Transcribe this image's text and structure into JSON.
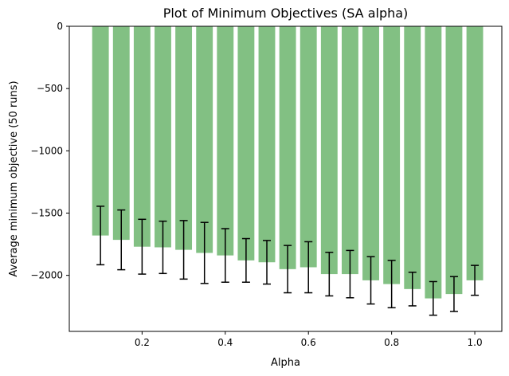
{
  "chart_data": {
    "type": "bar",
    "title": "Plot of Minimum Objectives (SA alpha)",
    "xlabel": "Alpha",
    "ylabel": "Average minimum objective (50 runs)",
    "x": [
      0.1,
      0.15,
      0.2,
      0.25,
      0.3,
      0.35,
      0.4,
      0.45,
      0.5,
      0.55,
      0.6,
      0.65,
      0.7,
      0.75,
      0.8,
      0.85,
      0.9,
      0.95,
      1.0
    ],
    "values": [
      -1680,
      -1715,
      -1770,
      -1775,
      -1795,
      -1820,
      -1840,
      -1880,
      -1895,
      -1950,
      -1935,
      -1990,
      -1990,
      -2040,
      -2070,
      -2110,
      -2185,
      -2150,
      -2040
    ],
    "errors": [
      235,
      240,
      220,
      210,
      235,
      245,
      215,
      175,
      175,
      190,
      205,
      175,
      190,
      190,
      190,
      135,
      135,
      140,
      120
    ],
    "xlim": [
      0.025,
      1.065
    ],
    "ylim": [
      -2450,
      0
    ],
    "x_ticks": [
      0.2,
      0.4,
      0.6,
      0.8,
      1.0
    ],
    "x_tick_labels": [
      "0.2",
      "0.4",
      "0.6",
      "0.8",
      "1.0"
    ],
    "y_ticks": [
      0,
      -500,
      -1000,
      -1500,
      -2000
    ],
    "y_tick_labels": [
      "0",
      "−500",
      "−1000",
      "−1500",
      "−2000"
    ],
    "bar_width": 0.04,
    "bar_color": "#82c083",
    "error_color": "#000000",
    "grid": false,
    "legend": "none"
  }
}
